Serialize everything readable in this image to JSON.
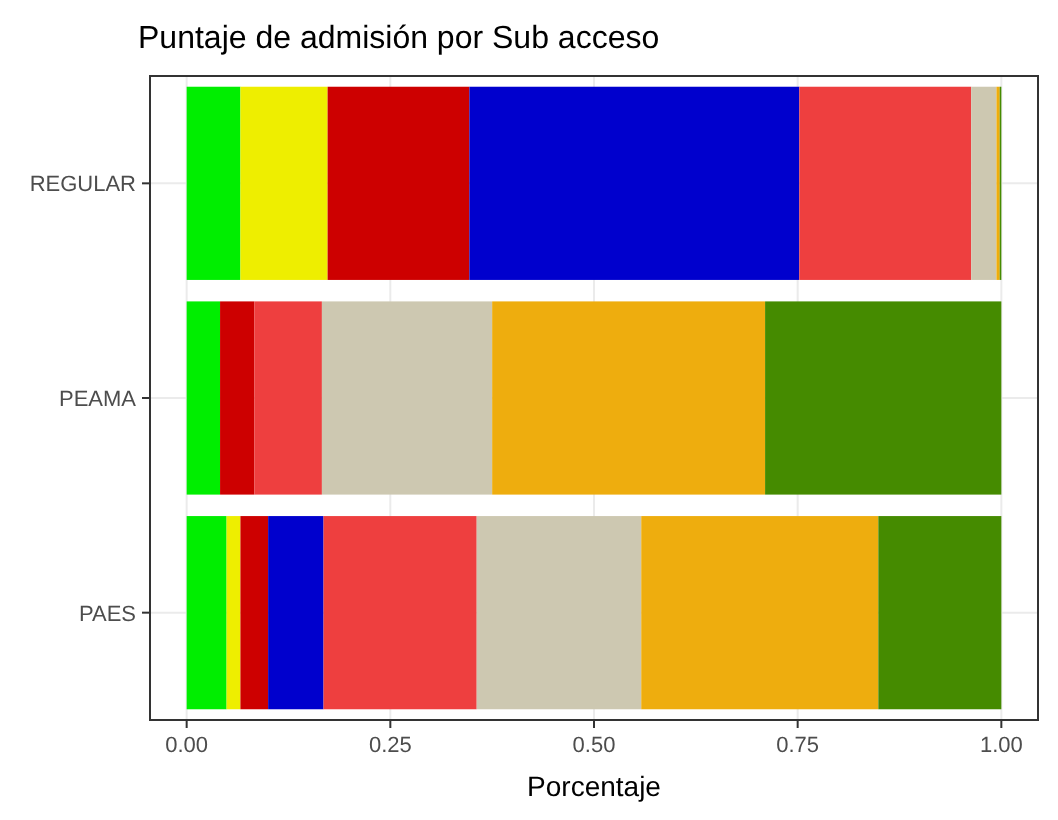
{
  "chart_data": {
    "type": "bar",
    "title": "Puntaje de admisión por Sub acceso",
    "xlabel": "Porcentaje",
    "orientation": "horizontal",
    "stacked": true,
    "categories": [
      "REGULAR",
      "PEAMA",
      "PAES"
    ],
    "series": [
      {
        "color": "#00ee00",
        "values": [
          0.066,
          0.041,
          0.049
        ]
      },
      {
        "color": "#eeee00",
        "values": [
          0.107,
          0,
          0.017
        ]
      },
      {
        "color": "#cd0000",
        "values": [
          0.174,
          0.042,
          0.034
        ]
      },
      {
        "color": "#0000cd",
        "values": [
          0.405,
          0,
          0.068
        ]
      },
      {
        "color": "#ee3f3f",
        "values": [
          0.211,
          0.083,
          0.188
        ]
      },
      {
        "color": "#cdc8b1",
        "values": [
          0.031,
          0.209,
          0.202
        ]
      },
      {
        "color": "#eead0e",
        "values": [
          0.004,
          0.335,
          0.291
        ]
      },
      {
        "color": "#458b00",
        "values": [
          0.002,
          0.29,
          0.151
        ]
      }
    ],
    "xlim": [
      -0.045,
      1.045
    ],
    "xticks": [
      {
        "value": 0,
        "label": "0.00"
      },
      {
        "value": 0.25,
        "label": "0.25"
      },
      {
        "value": 0.5,
        "label": "0.50"
      },
      {
        "value": 0.75,
        "label": "0.75"
      },
      {
        "value": 1,
        "label": "1.00"
      }
    ],
    "grid": true
  }
}
